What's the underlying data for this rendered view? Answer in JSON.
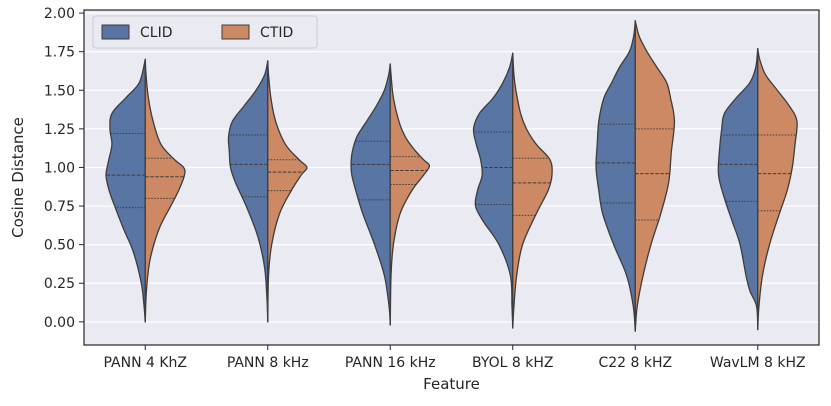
{
  "chart_data": {
    "type": "violin",
    "title": "",
    "xlabel": "Feature",
    "ylabel": "Cosine Distance",
    "ylim": [
      -0.15,
      2.02
    ],
    "yticks": [
      0.0,
      0.25,
      0.5,
      0.75,
      1.0,
      1.25,
      1.5,
      1.75,
      2.0
    ],
    "ytick_labels": [
      "0.00",
      "0.25",
      "0.50",
      "0.75",
      "1.00",
      "1.25",
      "1.50",
      "1.75",
      "2.00"
    ],
    "categories": [
      "PANN 4 KhZ",
      "PANN 8 kHz",
      "PANN 16 kHz",
      "BYOL 8 kHZ",
      "C22 8 kHZ",
      "WavLM 8 kHZ"
    ],
    "legend": {
      "position": "top-left",
      "entries": [
        "CLID",
        "CTID"
      ]
    },
    "colors": {
      "CLID": "#5975a4",
      "CTID": "#cc8963",
      "background": "#eaeaf2",
      "grid": "#ffffff",
      "outline": "#3d3d3d"
    },
    "series": [
      {
        "name": "CLID",
        "side": "left",
        "violins": [
          {
            "min": 0.0,
            "max": 1.7,
            "quartiles": [
              0.74,
              0.95,
              1.22
            ],
            "profile": [
              [
                0.0,
                0.0
              ],
              [
                0.1,
                0.03
              ],
              [
                0.25,
                0.1
              ],
              [
                0.45,
                0.3
              ],
              [
                0.6,
                0.55
              ],
              [
                0.75,
                0.78
              ],
              [
                0.85,
                0.92
              ],
              [
                0.95,
                1.0
              ],
              [
                1.05,
                0.93
              ],
              [
                1.15,
                0.85
              ],
              [
                1.25,
                0.9
              ],
              [
                1.35,
                0.85
              ],
              [
                1.45,
                0.5
              ],
              [
                1.55,
                0.15
              ],
              [
                1.7,
                0.0
              ]
            ]
          },
          {
            "min": 0.0,
            "max": 1.69,
            "quartiles": [
              0.81,
              1.02,
              1.21
            ],
            "profile": [
              [
                0.0,
                0.0
              ],
              [
                0.15,
                0.02
              ],
              [
                0.35,
                0.08
              ],
              [
                0.55,
                0.25
              ],
              [
                0.75,
                0.55
              ],
              [
                0.9,
                0.82
              ],
              [
                1.0,
                0.95
              ],
              [
                1.1,
                0.98
              ],
              [
                1.2,
                1.0
              ],
              [
                1.3,
                0.9
              ],
              [
                1.4,
                0.6
              ],
              [
                1.5,
                0.3
              ],
              [
                1.6,
                0.08
              ],
              [
                1.69,
                0.0
              ]
            ]
          },
          {
            "min": -0.02,
            "max": 1.67,
            "quartiles": [
              0.79,
              1.02,
              1.17
            ],
            "profile": [
              [
                -0.02,
                0.0
              ],
              [
                0.1,
                0.03
              ],
              [
                0.3,
                0.15
              ],
              [
                0.5,
                0.4
              ],
              [
                0.7,
                0.7
              ],
              [
                0.85,
                0.88
              ],
              [
                0.95,
                0.98
              ],
              [
                1.02,
                1.0
              ],
              [
                1.1,
                0.97
              ],
              [
                1.2,
                0.85
              ],
              [
                1.3,
                0.6
              ],
              [
                1.4,
                0.35
              ],
              [
                1.5,
                0.15
              ],
              [
                1.6,
                0.04
              ],
              [
                1.67,
                0.0
              ]
            ]
          },
          {
            "min": -0.04,
            "max": 1.74,
            "quartiles": [
              0.76,
              1.0,
              1.23
            ],
            "profile": [
              [
                -0.04,
                0.0
              ],
              [
                0.1,
                0.02
              ],
              [
                0.3,
                0.06
              ],
              [
                0.5,
                0.35
              ],
              [
                0.65,
                0.75
              ],
              [
                0.75,
                0.95
              ],
              [
                0.85,
                0.9
              ],
              [
                0.95,
                0.78
              ],
              [
                1.05,
                0.82
              ],
              [
                1.15,
                0.93
              ],
              [
                1.25,
                1.0
              ],
              [
                1.35,
                0.85
              ],
              [
                1.45,
                0.5
              ],
              [
                1.55,
                0.25
              ],
              [
                1.65,
                0.08
              ],
              [
                1.74,
                0.0
              ]
            ]
          },
          {
            "min": -0.06,
            "max": 1.95,
            "quartiles": [
              0.77,
              1.03,
              1.28
            ],
            "profile": [
              [
                -0.06,
                0.0
              ],
              [
                0.1,
                0.05
              ],
              [
                0.3,
                0.22
              ],
              [
                0.5,
                0.55
              ],
              [
                0.7,
                0.83
              ],
              [
                0.85,
                0.93
              ],
              [
                1.0,
                1.0
              ],
              [
                1.15,
                0.97
              ],
              [
                1.3,
                0.93
              ],
              [
                1.45,
                0.8
              ],
              [
                1.55,
                0.6
              ],
              [
                1.65,
                0.4
              ],
              [
                1.75,
                0.15
              ],
              [
                1.85,
                0.04
              ],
              [
                1.95,
                0.0
              ]
            ]
          },
          {
            "min": -0.05,
            "max": 1.77,
            "quartiles": [
              0.78,
              1.02,
              1.21
            ],
            "profile": [
              [
                -0.05,
                0.0
              ],
              [
                0.1,
                0.03
              ],
              [
                0.2,
                0.2
              ],
              [
                0.3,
                0.3
              ],
              [
                0.5,
                0.45
              ],
              [
                0.65,
                0.65
              ],
              [
                0.8,
                0.85
              ],
              [
                0.95,
                1.0
              ],
              [
                1.1,
                0.98
              ],
              [
                1.25,
                0.92
              ],
              [
                1.35,
                0.85
              ],
              [
                1.45,
                0.55
              ],
              [
                1.55,
                0.2
              ],
              [
                1.65,
                0.05
              ],
              [
                1.77,
                0.0
              ]
            ]
          }
        ]
      },
      {
        "name": "CTID",
        "side": "right",
        "violins": [
          {
            "min": 0.0,
            "max": 1.7,
            "quartiles": [
              0.8,
              0.94,
              1.06
            ],
            "profile": [
              [
                0.0,
                0.0
              ],
              [
                0.2,
                0.03
              ],
              [
                0.4,
                0.12
              ],
              [
                0.6,
                0.35
              ],
              [
                0.75,
                0.65
              ],
              [
                0.85,
                0.85
              ],
              [
                0.95,
                1.0
              ],
              [
                1.0,
                0.98
              ],
              [
                1.05,
                0.75
              ],
              [
                1.15,
                0.4
              ],
              [
                1.3,
                0.2
              ],
              [
                1.45,
                0.08
              ],
              [
                1.6,
                0.02
              ],
              [
                1.7,
                0.0
              ]
            ]
          },
          {
            "min": 0.0,
            "max": 1.69,
            "quartiles": [
              0.85,
              0.97,
              1.05
            ],
            "profile": [
              [
                0.0,
                0.0
              ],
              [
                0.3,
                0.02
              ],
              [
                0.5,
                0.1
              ],
              [
                0.7,
                0.3
              ],
              [
                0.85,
                0.6
              ],
              [
                0.95,
                0.85
              ],
              [
                1.0,
                1.0
              ],
              [
                1.05,
                0.8
              ],
              [
                1.15,
                0.45
              ],
              [
                1.3,
                0.2
              ],
              [
                1.45,
                0.08
              ],
              [
                1.6,
                0.02
              ],
              [
                1.69,
                0.0
              ]
            ]
          },
          {
            "min": -0.02,
            "max": 1.67,
            "quartiles": [
              0.89,
              0.98,
              1.07
            ],
            "profile": [
              [
                -0.02,
                0.0
              ],
              [
                0.3,
                0.02
              ],
              [
                0.5,
                0.08
              ],
              [
                0.7,
                0.25
              ],
              [
                0.85,
                0.55
              ],
              [
                0.95,
                0.85
              ],
              [
                1.01,
                1.0
              ],
              [
                1.05,
                0.85
              ],
              [
                1.12,
                0.6
              ],
              [
                1.2,
                0.38
              ],
              [
                1.3,
                0.22
              ],
              [
                1.45,
                0.08
              ],
              [
                1.6,
                0.02
              ],
              [
                1.67,
                0.0
              ]
            ]
          },
          {
            "min": -0.04,
            "max": 1.74,
            "quartiles": [
              0.69,
              0.9,
              1.06
            ],
            "profile": [
              [
                -0.04,
                0.0
              ],
              [
                0.1,
                0.03
              ],
              [
                0.3,
                0.1
              ],
              [
                0.5,
                0.25
              ],
              [
                0.7,
                0.6
              ],
              [
                0.85,
                0.9
              ],
              [
                0.95,
                1.0
              ],
              [
                1.05,
                0.95
              ],
              [
                1.15,
                0.6
              ],
              [
                1.25,
                0.35
              ],
              [
                1.35,
                0.2
              ],
              [
                1.5,
                0.08
              ],
              [
                1.6,
                0.03
              ],
              [
                1.74,
                0.0
              ]
            ]
          },
          {
            "min": -0.06,
            "max": 1.95,
            "quartiles": [
              0.66,
              0.96,
              1.25
            ],
            "profile": [
              [
                -0.06,
                0.0
              ],
              [
                0.1,
                0.05
              ],
              [
                0.3,
                0.2
              ],
              [
                0.5,
                0.4
              ],
              [
                0.7,
                0.65
              ],
              [
                0.9,
                0.85
              ],
              [
                1.1,
                0.92
              ],
              [
                1.3,
                1.0
              ],
              [
                1.45,
                0.9
              ],
              [
                1.55,
                0.8
              ],
              [
                1.65,
                0.55
              ],
              [
                1.75,
                0.3
              ],
              [
                1.85,
                0.1
              ],
              [
                1.95,
                0.0
              ]
            ]
          },
          {
            "min": -0.05,
            "max": 1.77,
            "quartiles": [
              0.72,
              0.96,
              1.21
            ],
            "profile": [
              [
                -0.05,
                0.0
              ],
              [
                0.1,
                0.03
              ],
              [
                0.3,
                0.12
              ],
              [
                0.5,
                0.3
              ],
              [
                0.7,
                0.55
              ],
              [
                0.85,
                0.75
              ],
              [
                1.0,
                0.88
              ],
              [
                1.15,
                0.95
              ],
              [
                1.3,
                1.0
              ],
              [
                1.4,
                0.8
              ],
              [
                1.5,
                0.5
              ],
              [
                1.6,
                0.2
              ],
              [
                1.7,
                0.05
              ],
              [
                1.77,
                0.0
              ]
            ]
          }
        ]
      }
    ]
  }
}
